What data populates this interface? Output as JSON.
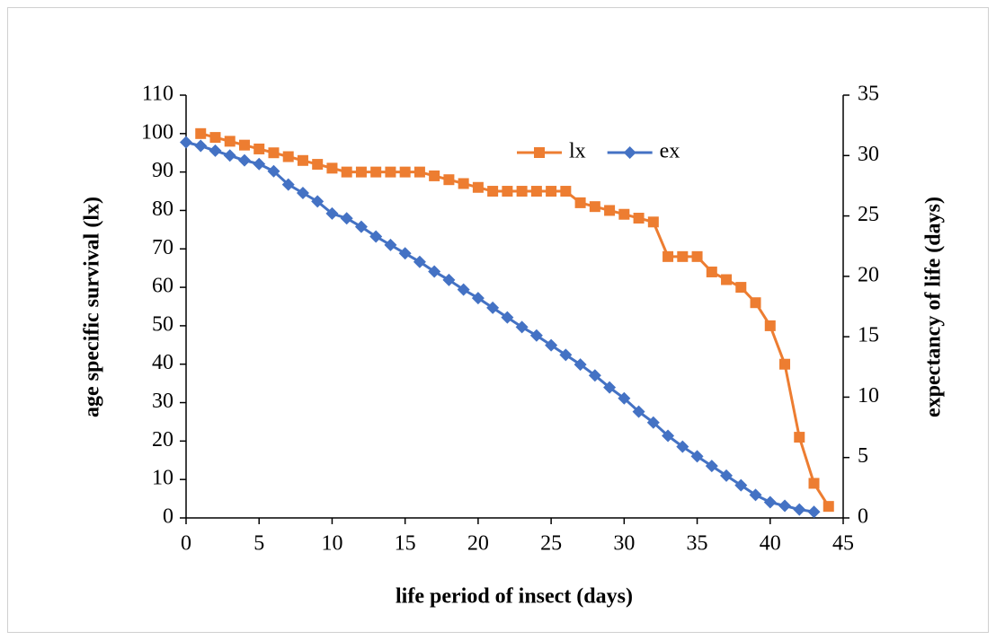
{
  "chart_data": {
    "type": "line",
    "x_label": "life period of insect (days)",
    "y_label": "age specific survival (lx)",
    "y2_label": "expectancy of life (days)",
    "xlim": [
      0,
      45
    ],
    "xticks": [
      0,
      5,
      10,
      15,
      20,
      25,
      30,
      35,
      40,
      45
    ],
    "ylim": [
      0,
      110
    ],
    "yticks": [
      0,
      10,
      20,
      30,
      40,
      50,
      60,
      70,
      80,
      90,
      100,
      110
    ],
    "y2lim": [
      0,
      35
    ],
    "y2ticks": [
      0,
      5,
      10,
      15,
      20,
      25,
      30,
      35
    ],
    "legend": "upper center",
    "series": [
      {
        "name": "lx",
        "color": "#ED7D31",
        "marker": "square",
        "x": [
          1,
          2,
          3,
          4,
          5,
          6,
          7,
          8,
          9,
          10,
          11,
          12,
          13,
          14,
          15,
          16,
          17,
          18,
          19,
          20,
          21,
          22,
          23,
          24,
          25,
          26,
          27,
          28,
          29,
          30,
          31,
          32,
          33,
          34,
          35,
          36,
          37,
          38,
          39,
          40,
          41,
          42,
          43,
          44
        ],
        "values": [
          100,
          99,
          98,
          97,
          96,
          95,
          94,
          93,
          92,
          91,
          90,
          90,
          90,
          90,
          90,
          90,
          89,
          88,
          87,
          86,
          85,
          85,
          85,
          85,
          85,
          85,
          82,
          81,
          80,
          79,
          78,
          77,
          68,
          68,
          68,
          64,
          62,
          60,
          56,
          50,
          40,
          21,
          9,
          3
        ]
      },
      {
        "name": "ex",
        "color": "#4472C4",
        "marker": "diamond",
        "axis": "y2",
        "x": [
          0,
          1,
          2,
          3,
          4,
          5,
          6,
          7,
          8,
          9,
          10,
          11,
          12,
          13,
          14,
          15,
          16,
          17,
          18,
          19,
          20,
          21,
          22,
          23,
          24,
          25,
          26,
          27,
          28,
          29,
          30,
          31,
          32,
          33,
          34,
          35,
          36,
          37,
          38,
          39,
          40,
          41,
          42,
          43
        ],
        "values": [
          31.1,
          30.8,
          30.4,
          30.0,
          29.6,
          29.3,
          28.7,
          27.6,
          26.9,
          26.2,
          25.2,
          24.8,
          24.1,
          23.3,
          22.6,
          21.9,
          21.2,
          20.4,
          19.7,
          18.9,
          18.2,
          17.4,
          16.6,
          15.8,
          15.1,
          14.3,
          13.5,
          12.7,
          11.8,
          10.8,
          9.9,
          8.8,
          7.9,
          6.8,
          5.9,
          5.1,
          4.3,
          3.5,
          2.7,
          1.9,
          1.3,
          1.0,
          0.7,
          0.5
        ]
      }
    ]
  }
}
